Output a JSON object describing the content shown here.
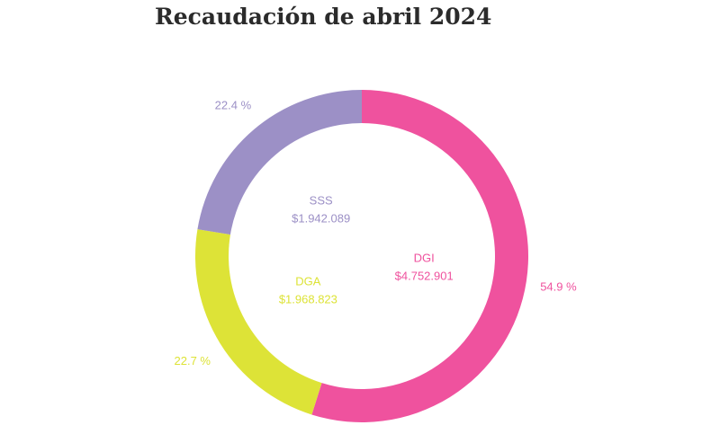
{
  "chart_data": {
    "type": "pie",
    "title": "Recaudación de abril 2024",
    "series": [
      {
        "name": "DGI",
        "value": 4752901,
        "value_label": "$4.752.901",
        "percent_label": "54.9 %",
        "color": "#ef529e"
      },
      {
        "name": "DGA",
        "value": 1968823,
        "value_label": "$1.968.823",
        "percent_label": "22.7 %",
        "color": "#dde337"
      },
      {
        "name": "SSS",
        "value": 1942089,
        "value_label": "$1.942.089",
        "percent_label": "22.4 %",
        "color": "#9c90c6"
      }
    ],
    "donut": true,
    "start_angle": "top",
    "direction": "clockwise"
  }
}
